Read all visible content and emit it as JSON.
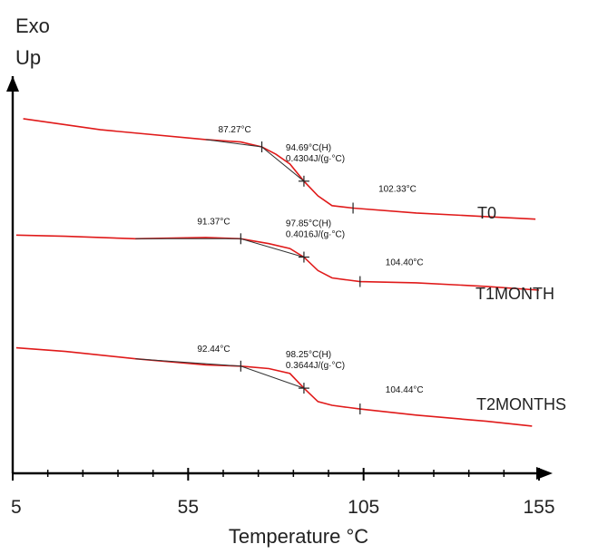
{
  "chart_data": {
    "type": "line",
    "title": "",
    "y_axis_label_lines": [
      "Exo",
      "Up"
    ],
    "x_label": "Temperature °C",
    "x_ticks": [
      5,
      55,
      105,
      155
    ],
    "xlim": [
      5,
      155
    ],
    "y_ticks": [],
    "grid": false,
    "legend": "none",
    "colors": {
      "curve": "#e01a1a",
      "fit": "#333333",
      "axis": "#000000"
    },
    "series": [
      {
        "name": "T0",
        "points": [
          [
            8,
            43
          ],
          [
            30,
            34
          ],
          [
            60,
            26
          ],
          [
            70,
            24
          ],
          [
            76,
            20
          ],
          [
            80,
            14
          ],
          [
            84,
            6
          ],
          [
            88,
            -8
          ],
          [
            92,
            -20
          ],
          [
            96,
            -28
          ],
          [
            102,
            -30
          ],
          [
            120,
            -34
          ],
          [
            140,
            -37
          ],
          [
            154,
            -39
          ]
        ],
        "annotations": {
          "onset": "87.27°C",
          "midpoint": "94.69°C(H)",
          "delta_cp": "0.4304J/(g·°C)",
          "end": "102.33°C"
        },
        "markers": {
          "onset_x": 72,
          "mid_x": 88,
          "end_x": 100
        }
      },
      {
        "name": "T1MONTH",
        "points": [
          [
            6,
            45
          ],
          [
            20,
            44
          ],
          [
            40,
            42
          ],
          [
            60,
            43
          ],
          [
            70,
            42
          ],
          [
            78,
            38
          ],
          [
            84,
            34
          ],
          [
            88,
            27
          ],
          [
            92,
            16
          ],
          [
            96,
            10
          ],
          [
            104,
            7
          ],
          [
            120,
            6
          ],
          [
            140,
            3
          ],
          [
            155,
            0
          ]
        ],
        "annotations": {
          "onset": "91.37°C",
          "midpoint": "97.85°C(H)",
          "delta_cp": "0.4016J/(g·°C)",
          "end": "104.40°C"
        },
        "markers": {
          "onset_x": 74,
          "mid_x": 90,
          "end_x": 104
        }
      },
      {
        "name": "T2MONTHS",
        "points": [
          [
            6,
            47
          ],
          [
            20,
            44
          ],
          [
            40,
            38
          ],
          [
            60,
            33
          ],
          [
            70,
            32
          ],
          [
            78,
            30
          ],
          [
            84,
            26
          ],
          [
            88,
            14
          ],
          [
            92,
            3
          ],
          [
            96,
            0
          ],
          [
            104,
            -3
          ],
          [
            120,
            -8
          ],
          [
            140,
            -13
          ],
          [
            153,
            -17
          ]
        ],
        "annotations": {
          "onset": "92.44°C",
          "midpoint": "98.25°C(H)",
          "delta_cp": "0.3644J/(g·°C)",
          "end": "104.44°C"
        },
        "markers": {
          "onset_x": 75,
          "mid_x": 90,
          "end_x": 102
        }
      }
    ]
  }
}
